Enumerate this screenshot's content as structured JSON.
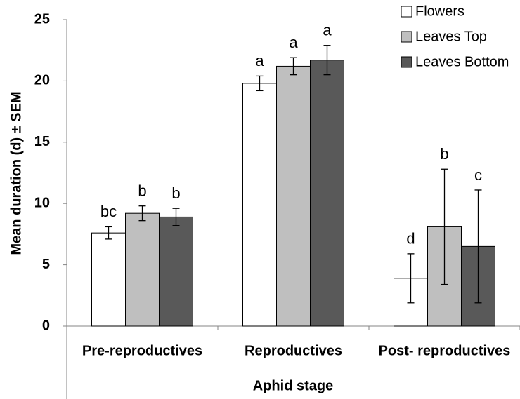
{
  "chart_data": {
    "type": "bar",
    "ylabel": "Mean duration (d) ± SEM",
    "xlabel": "Aphid stage",
    "categories": [
      "Pre-reproductives",
      "Reproductives",
      "Post- reproductives"
    ],
    "series": [
      {
        "name": "Flowers",
        "color": "#ffffff",
        "values": [
          7.6,
          19.8,
          3.9
        ],
        "errors": [
          0.5,
          0.6,
          2.0
        ],
        "letters": [
          "bc",
          "a",
          "d"
        ]
      },
      {
        "name": "Leaves Top",
        "color": "#bfbfbf",
        "values": [
          9.2,
          21.2,
          8.1
        ],
        "errors": [
          0.6,
          0.7,
          4.7
        ],
        "letters": [
          "b",
          "a",
          "b"
        ]
      },
      {
        "name": "Leaves Bottom",
        "color": "#595959",
        "values": [
          8.9,
          21.7,
          6.5
        ],
        "errors": [
          0.7,
          1.2,
          4.6
        ],
        "letters": [
          "b",
          "a",
          "c"
        ]
      }
    ],
    "ylim": [
      0,
      25
    ],
    "yticks": [
      0,
      5,
      10,
      15,
      20,
      25
    ],
    "legend": "upper right"
  }
}
